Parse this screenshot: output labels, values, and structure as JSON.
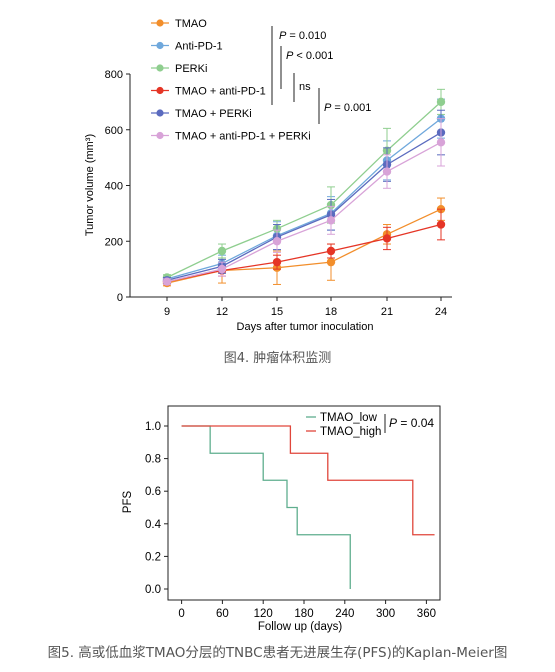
{
  "figure4": {
    "caption": "图4. 肿瘤体积监测",
    "chart_data": {
      "type": "line",
      "xlabel": "Days after tumor inoculation",
      "ylabel": "Tumor volume (mm³)",
      "x": [
        9,
        12,
        15,
        18,
        21,
        24
      ],
      "xticks": [
        "9",
        "12",
        "15",
        "18",
        "21",
        "24"
      ],
      "ylim": [
        0,
        800
      ],
      "yticks": [
        "0",
        "200",
        "400",
        "600",
        "800"
      ],
      "legend_position": "top-left",
      "series": [
        {
          "name": "TMAO",
          "color": "#f28e2b",
          "values": [
            50,
            95,
            105,
            125,
            225,
            315
          ],
          "errors": [
            10,
            45,
            60,
            65,
            35,
            40
          ]
        },
        {
          "name": "Anti-PD-1",
          "color": "#6fa8dc",
          "values": [
            65,
            120,
            220,
            300,
            490,
            640
          ],
          "errors": [
            10,
            30,
            50,
            60,
            70,
            70
          ]
        },
        {
          "name": "PERKi",
          "color": "#8fce8f",
          "values": [
            70,
            165,
            245,
            330,
            525,
            700
          ],
          "errors": [
            10,
            25,
            30,
            65,
            80,
            45
          ]
        },
        {
          "name": "TMAO + anti-PD-1",
          "color": "#e53526",
          "values": [
            55,
            95,
            125,
            165,
            210,
            260
          ],
          "errors": [
            10,
            20,
            25,
            25,
            40,
            55
          ]
        },
        {
          "name": "TMAO + PERKi",
          "color": "#5b6bbf",
          "values": [
            60,
            110,
            215,
            295,
            475,
            590
          ],
          "errors": [
            10,
            25,
            45,
            55,
            60,
            80
          ]
        },
        {
          "name": "TMAO + anti-PD-1 + PERKi",
          "color": "#d8a3d8",
          "values": [
            55,
            100,
            200,
            275,
            450,
            555
          ],
          "errors": [
            10,
            25,
            40,
            50,
            60,
            85
          ]
        }
      ],
      "annotations": [
        "P = 0.010",
        "P < 0.001",
        "ns",
        "P = 0.001"
      ]
    }
  },
  "figure5": {
    "caption": "图5. 高或低血浆TMAO分层的TNBC患者无进展生存(PFS)的Kaplan-Meier图",
    "chart_data": {
      "type": "line",
      "step": true,
      "xlabel": "Follow up (days)",
      "ylabel": "PFS",
      "xlim": [
        -20,
        380
      ],
      "xticks": [
        "0",
        "60",
        "120",
        "180",
        "240",
        "300",
        "360"
      ],
      "ylim": [
        0,
        1.05
      ],
      "yticks": [
        "0.0",
        "0.2",
        "0.4",
        "0.6",
        "0.8",
        "1.0"
      ],
      "legend_position": "top-right",
      "annotation": "P = 0.04",
      "series": [
        {
          "name": "TMAO_low",
          "color": "#5fae8e",
          "points": [
            [
              0,
              1.0
            ],
            [
              42,
              1.0
            ],
            [
              42,
              0.833
            ],
            [
              120,
              0.833
            ],
            [
              120,
              0.667
            ],
            [
              155,
              0.667
            ],
            [
              155,
              0.5
            ],
            [
              170,
              0.5
            ],
            [
              170,
              0.333
            ],
            [
              248,
              0.333
            ],
            [
              248,
              0.0
            ]
          ]
        },
        {
          "name": "TMAO_high",
          "color": "#e0463b",
          "points": [
            [
              0,
              1.0
            ],
            [
              160,
              1.0
            ],
            [
              160,
              0.833
            ],
            [
              215,
              0.833
            ],
            [
              215,
              0.667
            ],
            [
              340,
              0.667
            ],
            [
              340,
              0.333
            ],
            [
              372,
              0.333
            ]
          ]
        }
      ]
    }
  }
}
